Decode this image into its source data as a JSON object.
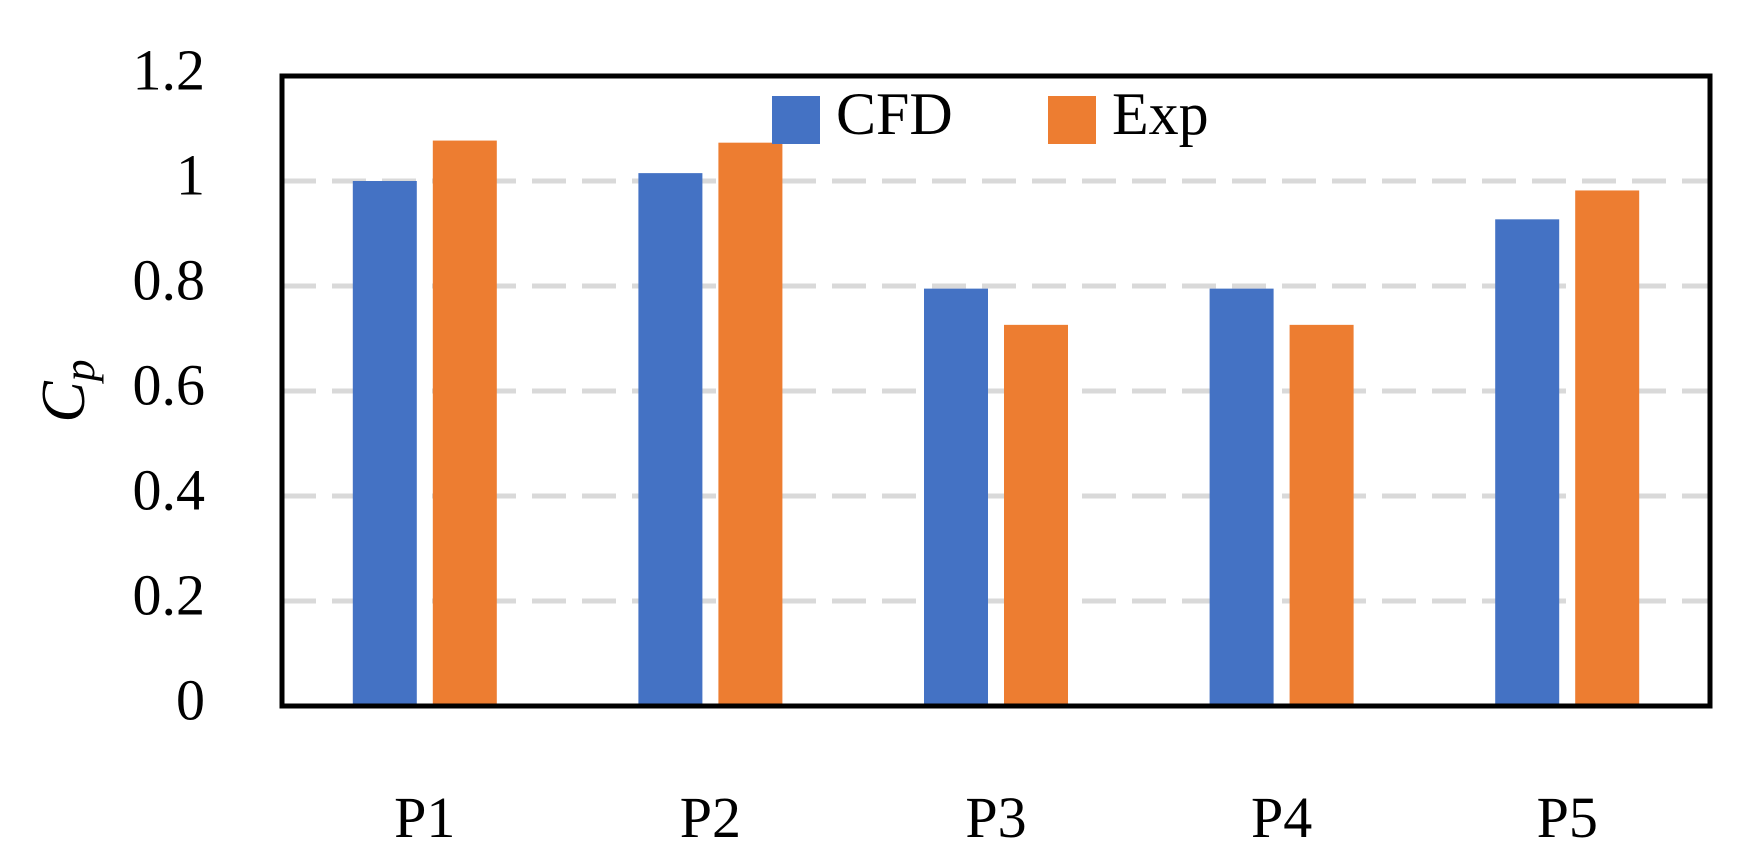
{
  "chart_data": {
    "type": "bar",
    "title": "",
    "xlabel": "",
    "ylabel": "C",
    "ylabel_subscript": "p",
    "categories": [
      "P1",
      "P2",
      "P3",
      "P4",
      "P5"
    ],
    "series": [
      {
        "name": "CFD",
        "color": "#4472C4",
        "values": [
          1.0,
          1.015,
          0.795,
          0.795,
          0.927
        ]
      },
      {
        "name": "Exp",
        "color": "#ED7D31",
        "values": [
          1.077,
          1.073,
          0.726,
          0.726,
          0.982
        ]
      }
    ],
    "ylim": [
      0,
      1.2
    ],
    "yticks": [
      0,
      0.2,
      0.4,
      0.6,
      0.8,
      1,
      1.2
    ],
    "ytick_labels": [
      "0",
      "0.2",
      "0.4",
      "0.6",
      "0.8",
      "1",
      "1.2"
    ],
    "grid": true,
    "grid_style": "dashed",
    "grid_color": "#D9D9D9",
    "legend_position": "top-center"
  }
}
